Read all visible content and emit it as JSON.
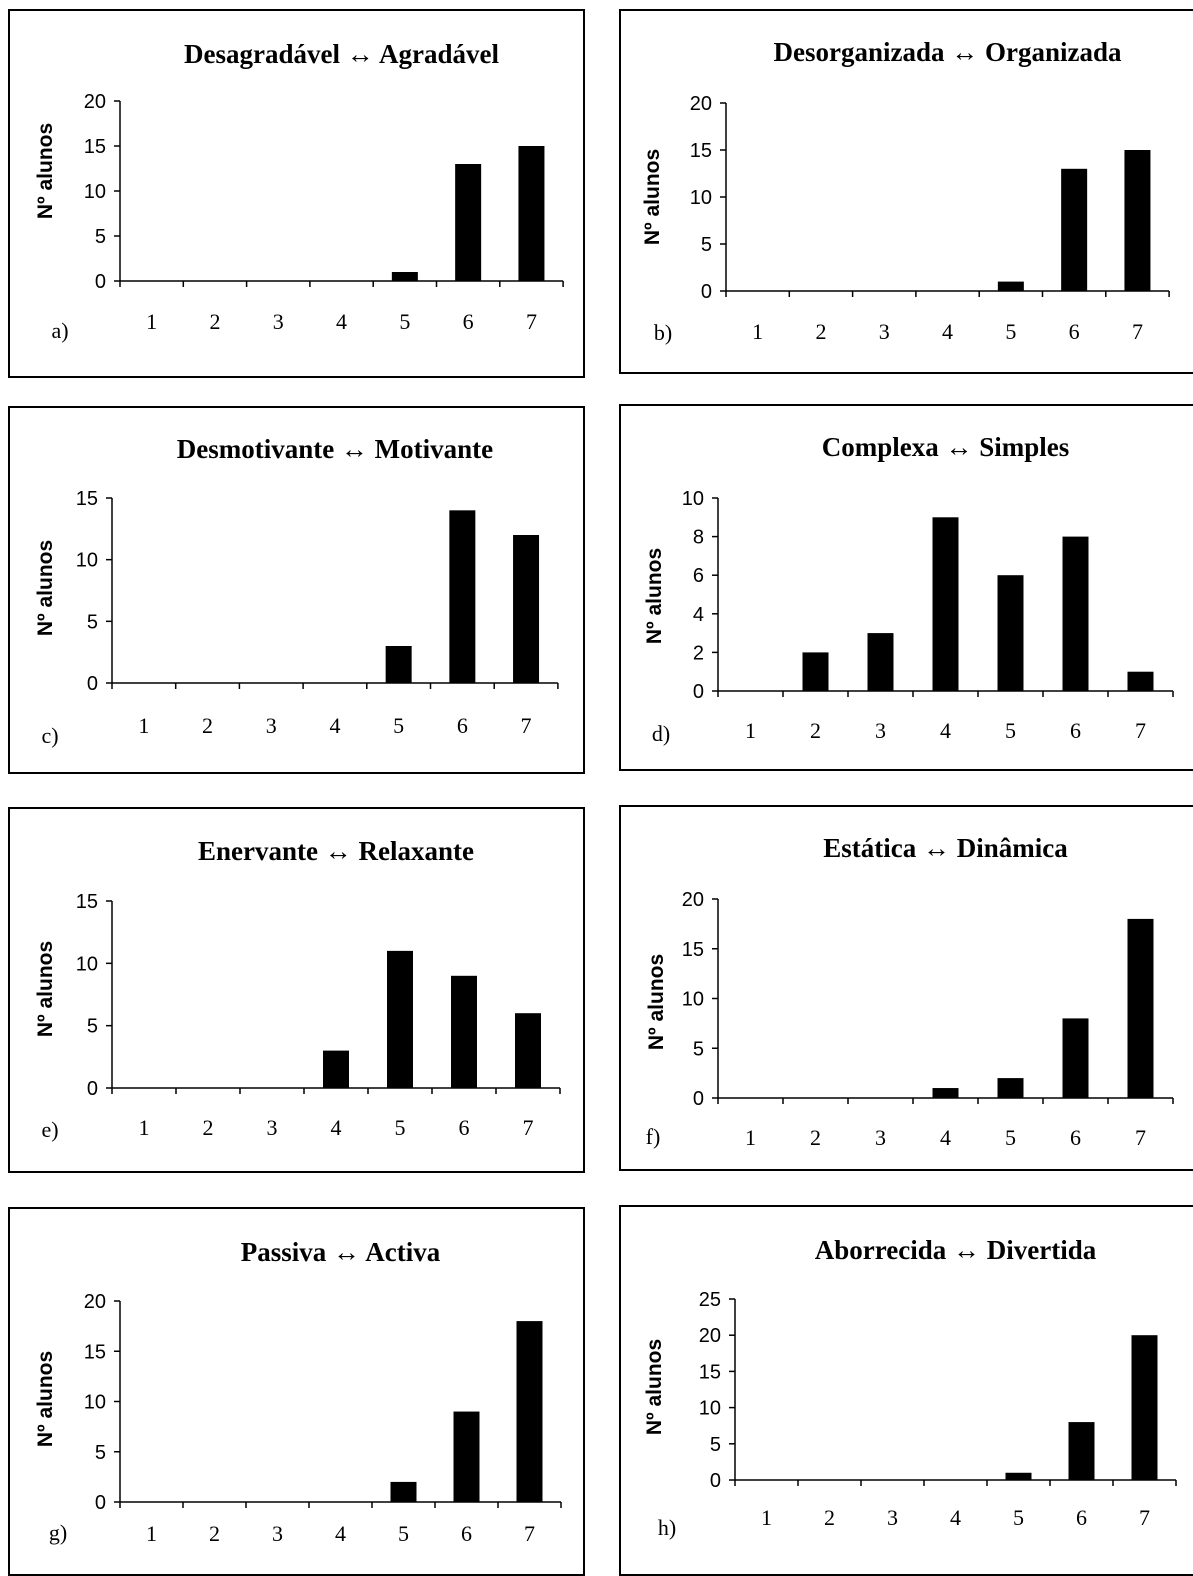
{
  "chart_data": [
    {
      "type": "bar",
      "panel_label": "a)",
      "title": "Desagradável ↔ Agradável",
      "ylabel": "Nº alunos",
      "categories": [
        "1",
        "2",
        "3",
        "4",
        "5",
        "6",
        "7"
      ],
      "values": [
        0,
        0,
        0,
        0,
        1,
        13,
        15
      ],
      "ylim": [
        0,
        20
      ],
      "yticks": [
        0,
        5,
        10,
        15,
        20
      ],
      "bar_color": "#000000",
      "grid": false
    },
    {
      "type": "bar",
      "panel_label": "b)",
      "title": "Desorganizada ↔ Organizada",
      "ylabel": "Nº alunos",
      "categories": [
        "1",
        "2",
        "3",
        "4",
        "5",
        "6",
        "7"
      ],
      "values": [
        0,
        0,
        0,
        0,
        1,
        13,
        15
      ],
      "ylim": [
        0,
        20
      ],
      "yticks": [
        0,
        5,
        10,
        15,
        20
      ],
      "bar_color": "#000000",
      "grid": false
    },
    {
      "type": "bar",
      "panel_label": "c)",
      "title": "Desmotivante ↔ Motivante",
      "ylabel": "Nº alunos",
      "categories": [
        "1",
        "2",
        "3",
        "4",
        "5",
        "6",
        "7"
      ],
      "values": [
        0,
        0,
        0,
        0,
        3,
        14,
        12
      ],
      "ylim": [
        0,
        15
      ],
      "yticks": [
        0,
        5,
        10,
        15
      ],
      "bar_color": "#000000",
      "grid": false
    },
    {
      "type": "bar",
      "panel_label": "d)",
      "title": "Complexa ↔ Simples",
      "ylabel": "Nº alunos",
      "categories": [
        "1",
        "2",
        "3",
        "4",
        "5",
        "6",
        "7"
      ],
      "values": [
        0,
        2,
        3,
        9,
        6,
        8,
        1
      ],
      "ylim": [
        0,
        10
      ],
      "yticks": [
        0,
        2,
        4,
        6,
        8,
        10
      ],
      "bar_color": "#000000",
      "grid": false
    },
    {
      "type": "bar",
      "panel_label": "e)",
      "title": "Enervante ↔ Relaxante",
      "ylabel": "Nº alunos",
      "categories": [
        "1",
        "2",
        "3",
        "4",
        "5",
        "6",
        "7"
      ],
      "values": [
        0,
        0,
        0,
        3,
        11,
        9,
        6
      ],
      "ylim": [
        0,
        15
      ],
      "yticks": [
        0,
        5,
        10,
        15
      ],
      "bar_color": "#000000",
      "grid": false
    },
    {
      "type": "bar",
      "panel_label": "f)",
      "title": "Estática ↔ Dinâmica",
      "ylabel": "Nº alunos",
      "categories": [
        "1",
        "2",
        "3",
        "4",
        "5",
        "6",
        "7"
      ],
      "values": [
        0,
        0,
        0,
        1,
        2,
        8,
        18
      ],
      "ylim": [
        0,
        20
      ],
      "yticks": [
        0,
        5,
        10,
        15,
        20
      ],
      "bar_color": "#000000",
      "grid": false
    },
    {
      "type": "bar",
      "panel_label": "g)",
      "title": "Passiva ↔ Activa",
      "ylabel": "Nº alunos",
      "categories": [
        "1",
        "2",
        "3",
        "4",
        "5",
        "6",
        "7"
      ],
      "values": [
        0,
        0,
        0,
        0,
        2,
        9,
        18
      ],
      "ylim": [
        0,
        20
      ],
      "yticks": [
        0,
        5,
        10,
        15,
        20
      ],
      "bar_color": "#000000",
      "grid": false
    },
    {
      "type": "bar",
      "panel_label": "h)",
      "title": "Aborrecida ↔ Divertida",
      "ylabel": "Nº alunos",
      "categories": [
        "1",
        "2",
        "3",
        "4",
        "5",
        "6",
        "7"
      ],
      "values": [
        0,
        0,
        0,
        0,
        1,
        8,
        20
      ],
      "ylim": [
        0,
        25
      ],
      "yticks": [
        0,
        5,
        10,
        15,
        20,
        25
      ],
      "bar_color": "#000000",
      "grid": false
    }
  ]
}
